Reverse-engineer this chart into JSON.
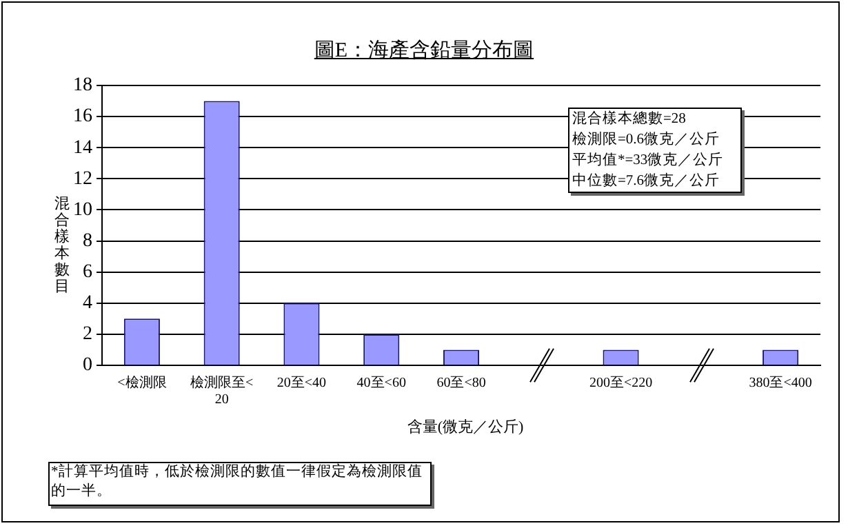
{
  "chart_data": {
    "type": "bar",
    "title": "圖E：海產含鉛量分布圖",
    "xlabel": "含量(微克／公斤)",
    "ylabel": "混合樣本數目",
    "categories": [
      "<檢測限",
      "檢測限至<20",
      "20至<40",
      "40至<60",
      "60至<80",
      null,
      "200至<220",
      null,
      "380至<400"
    ],
    "series": [
      {
        "color": "#9999ff",
        "values": [
          3,
          17,
          4,
          2,
          1,
          null,
          1,
          null,
          1
        ]
      }
    ],
    "ylim": [
      0,
      18
    ],
    "yticks": [
      0,
      2,
      4,
      6,
      8,
      10,
      12,
      14,
      16,
      18
    ],
    "grid": "y",
    "legend": false,
    "annotations": [
      "混合樣本總數=28",
      "檢測限=0.6微克／公斤",
      "平均值*=33微克／公斤",
      "中位數=7.6微克／公斤",
      "*計算平均值時，低於檢測限的數值一律假定為檢測限值的一半。"
    ]
  }
}
